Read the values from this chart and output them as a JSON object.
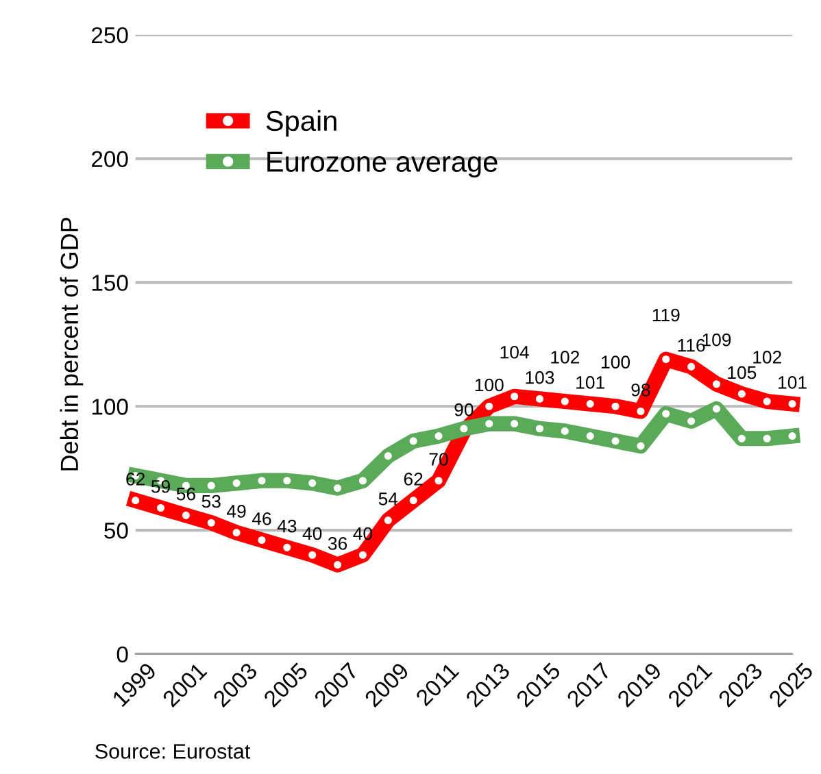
{
  "chart_data": {
    "type": "line",
    "ylabel": "Debt in percent of GDP",
    "x": [
      1999,
      2000,
      2001,
      2002,
      2003,
      2004,
      2005,
      2006,
      2007,
      2008,
      2009,
      2010,
      2011,
      2012,
      2013,
      2014,
      2015,
      2016,
      2017,
      2018,
      2019,
      2020,
      2021,
      2022,
      2023,
      2024,
      2025
    ],
    "series": [
      {
        "name": "Spain",
        "color": "#ff0000",
        "values": [
          62,
          59,
          56,
          53,
          49,
          46,
          43,
          40,
          36,
          40,
          54,
          62,
          70,
          90,
          100,
          104,
          103,
          102,
          101,
          100,
          98,
          119,
          116,
          109,
          105,
          102,
          101
        ],
        "data_labels": true
      },
      {
        "name": "Eurozone average",
        "color": "#5aaa5a",
        "values": [
          72,
          70,
          68,
          68,
          69,
          70,
          70,
          69,
          67,
          70,
          80,
          86,
          88,
          91,
          93,
          93,
          91,
          90,
          88,
          86,
          84,
          97,
          94,
          99,
          87,
          87,
          88
        ]
      }
    ],
    "ylim": [
      0,
      250
    ],
    "yticks": [
      0,
      50,
      100,
      150,
      200,
      250
    ],
    "xlim": [
      1999,
      2025
    ],
    "xticks": [
      1999,
      2001,
      2003,
      2005,
      2007,
      2009,
      2011,
      2013,
      2015,
      2017,
      2019,
      2021,
      2023,
      2025
    ],
    "grid": "y",
    "legend": "top left",
    "marker": "circle",
    "line_style": "solid",
    "annotations": [
      "Source: Eurostat"
    ]
  }
}
